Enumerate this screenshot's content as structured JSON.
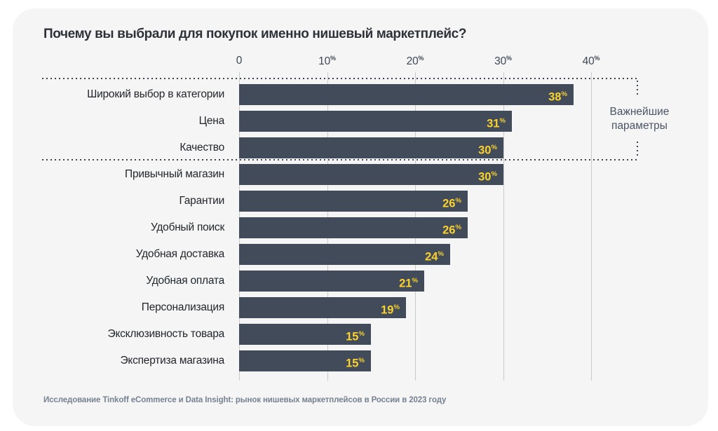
{
  "page": {
    "title": "Почему вы выбрали для покупок именно нишевый маркетплейс?",
    "source": "Исследование Tinkoff eCommerce и Data Insight: рынок нишевых маркетплейсов в России в 2023 году"
  },
  "annotation": {
    "label": "Важнейшие параметры"
  },
  "colors": {
    "card_bg": "#F5F5F6",
    "bar": "#414B5A",
    "value": "#FBD22D",
    "grid": "#C9CACC",
    "dots": "#3C4450",
    "text_dark": "#2E3238",
    "axis_text": "#3D4753",
    "annotation_text": "#4A5462",
    "source_text": "#76828F"
  },
  "chart_data": {
    "type": "bar",
    "orientation": "horizontal",
    "title": "Почему вы выбрали для покупок именно нишевый маркетплейс?",
    "categories": [
      "Широкий выбор в категории",
      "Цена",
      "Качество",
      "Привычный магазин",
      "Гарантии",
      "Удобный поиск",
      "Удобная доставка",
      "Удобная оплата",
      "Персонализация",
      "Эксклюзивность товара",
      "Экспертиза магазина"
    ],
    "values": [
      38,
      31,
      30,
      30,
      26,
      26,
      24,
      21,
      19,
      15,
      15
    ],
    "unit": "%",
    "x_ticks": [
      0,
      10,
      20,
      30,
      40
    ],
    "x_tick_labels": [
      "0",
      "10%",
      "20%",
      "30%",
      "40%"
    ],
    "xlim": [
      0,
      45
    ],
    "grid": true,
    "value_labels": "inside-end",
    "highlight_group": {
      "label": "Важнейшие параметры",
      "row_indices": [
        0,
        1,
        2
      ]
    },
    "source": "Исследование Tinkoff eCommerce и Data Insight: рынок нишевых маркетплейсов в России в 2023 году"
  }
}
